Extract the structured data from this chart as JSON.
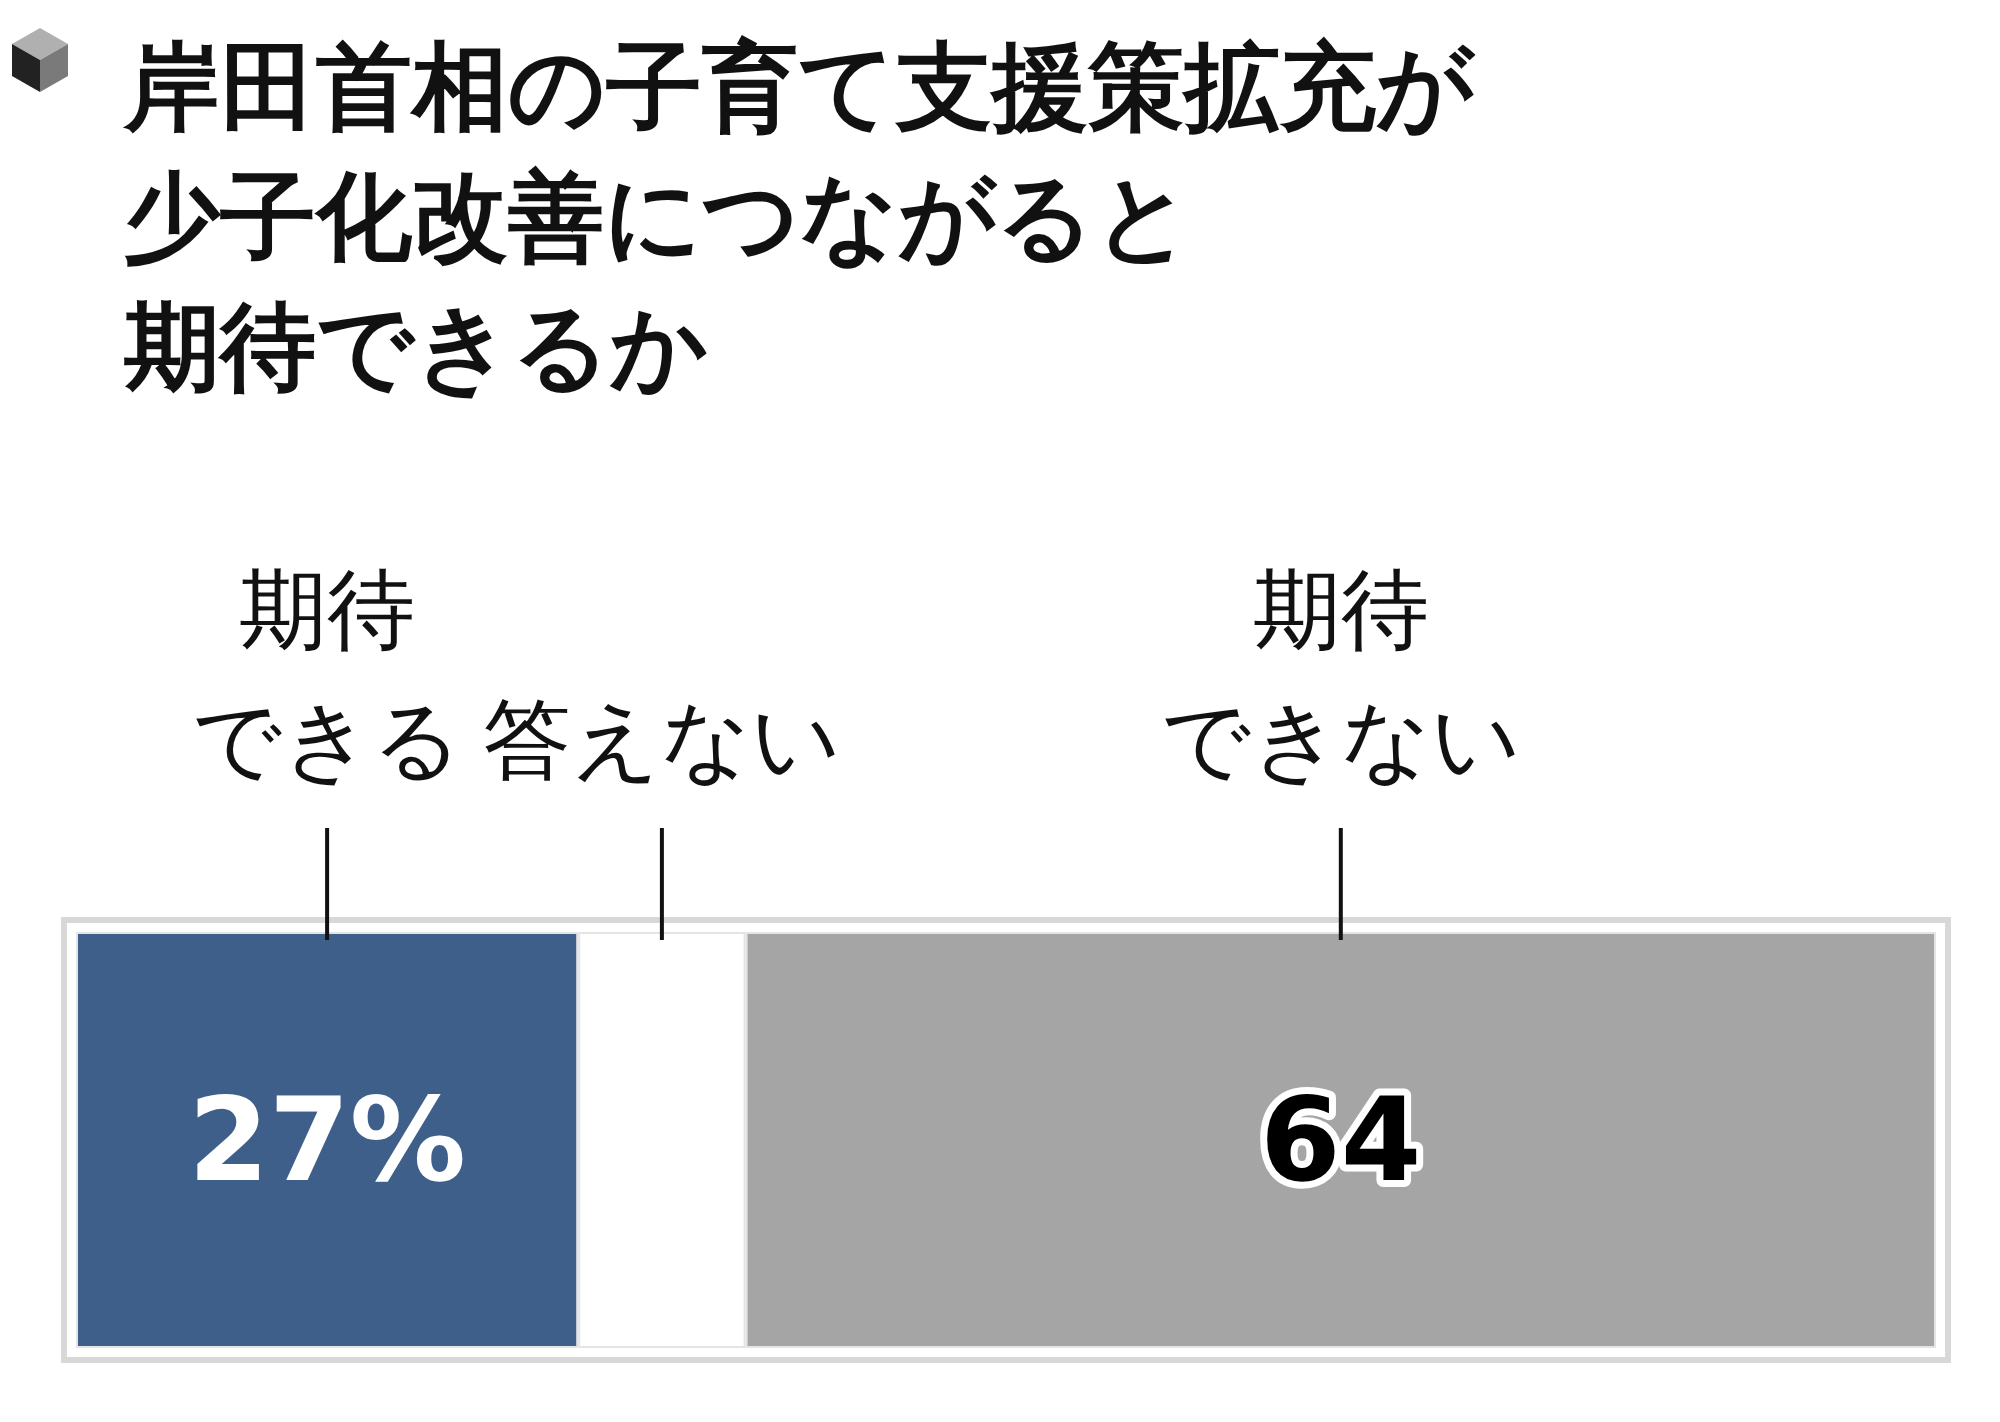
{
  "chart_data": {
    "type": "bar",
    "orientation": "horizontal",
    "stacked": true,
    "title": "岸田首相の子育て支援策拡充が少子化改善につながると期待できるか",
    "categories": [
      null
    ],
    "series": [
      {
        "name": "期待できる",
        "color": "#3e5f8a",
        "values": [
          27
        ],
        "value_labels": [
          "27%"
        ]
      },
      {
        "name": "答えない",
        "color": "#ffffff",
        "values": [
          9
        ],
        "value_labels": [
          null
        ]
      },
      {
        "name": "期待できない",
        "color": "#a5a5a5",
        "values": [
          64
        ],
        "value_labels": [
          "64"
        ]
      }
    ]
  }
}
